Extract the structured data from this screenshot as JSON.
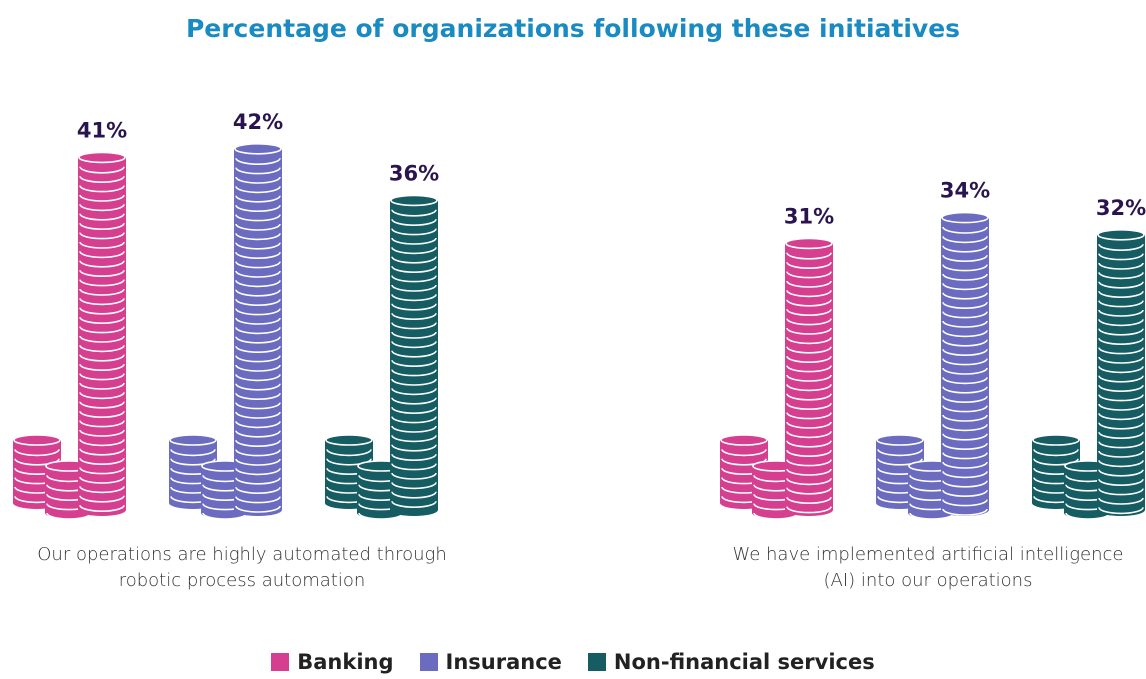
{
  "chart_data": {
    "type": "coin-stack-bar",
    "title": "Percentage of organizations following these initiatives",
    "categories": [
      "Our operations are highly automated through robotic process automation",
      "We have implemented artificial intelligence (AI) into our operations"
    ],
    "series": [
      {
        "name": "Banking",
        "color": "#d63f8f",
        "values": [
          41,
          31
        ],
        "value_labels": [
          "41%",
          "31%"
        ]
      },
      {
        "name": "Insurance",
        "color": "#6b6bbf",
        "values": [
          42,
          34
        ],
        "value_labels": [
          "42%",
          "34%"
        ]
      },
      {
        "name": "Non-financial services",
        "color": "#155c63",
        "values": [
          36,
          32
        ],
        "value_labels": [
          "36%",
          "32%"
        ]
      }
    ]
  }
}
